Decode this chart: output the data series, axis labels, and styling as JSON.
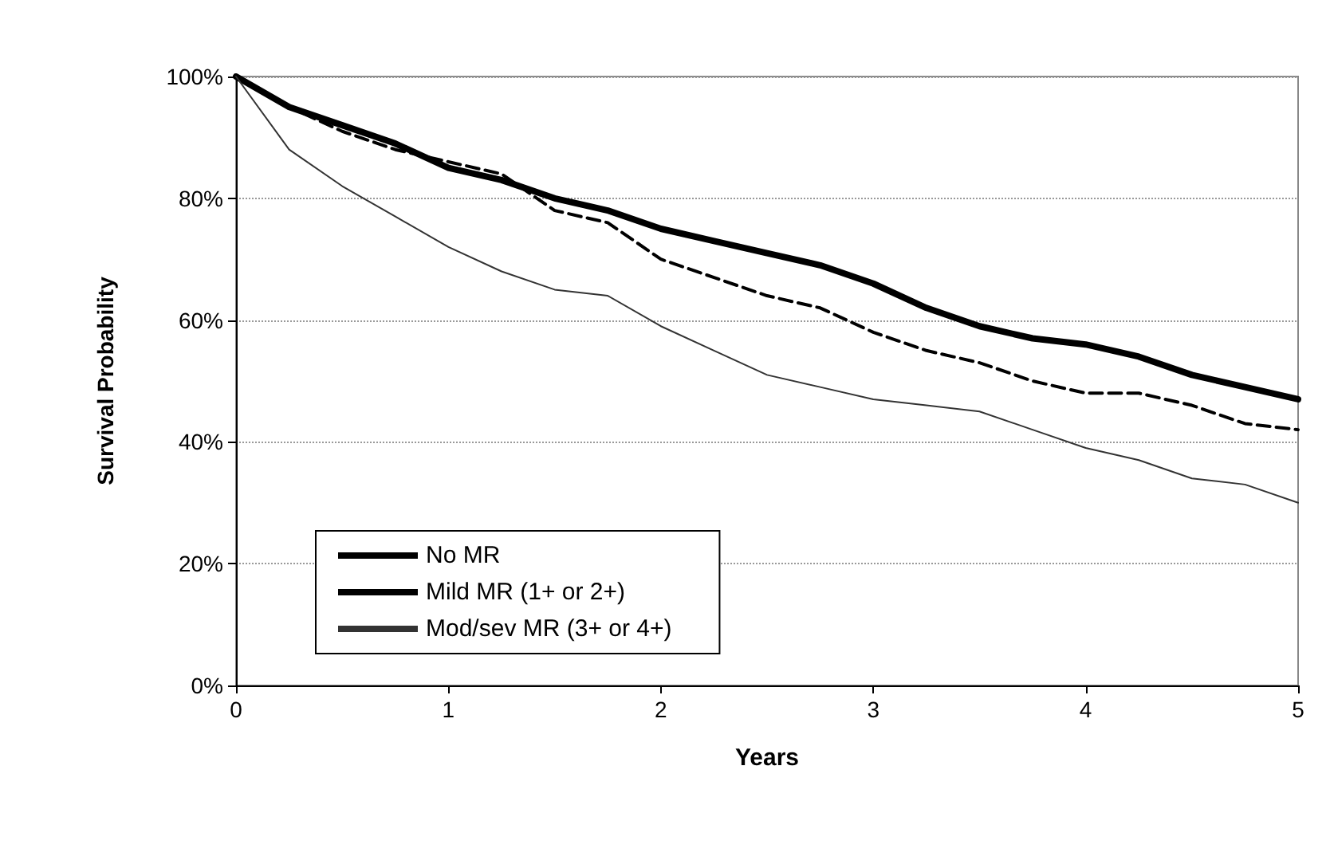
{
  "chart_data": {
    "type": "line",
    "xlabel": "Years",
    "ylabel": "Survival Probability",
    "x": [
      0,
      0.25,
      0.5,
      0.75,
      1,
      1.25,
      1.5,
      1.75,
      2,
      2.25,
      2.5,
      2.75,
      3,
      3.25,
      3.5,
      3.75,
      4,
      4.25,
      4.5,
      4.75,
      5
    ],
    "series": [
      {
        "name": "No MR",
        "color": "#000000",
        "line_style": "solid",
        "values": [
          100,
          95,
          92,
          89,
          85,
          83,
          80,
          78,
          75,
          73,
          71,
          69,
          66,
          62,
          59,
          57,
          56,
          54,
          51,
          49,
          47
        ]
      },
      {
        "name": "Mild MR (1+ or 2+)",
        "color": "#000000",
        "line_style": "dashed",
        "values": [
          100,
          95,
          91,
          88,
          86,
          84,
          78,
          76,
          70,
          67,
          64,
          62,
          58,
          55,
          53,
          50,
          48,
          48,
          46,
          43,
          42
        ]
      },
      {
        "name": "Mod/sev MR (3+ or 4+)",
        "color": "#333333",
        "line_style": "solid",
        "values": [
          100,
          88,
          82,
          77,
          72,
          68,
          65,
          64,
          59,
          55,
          51,
          49,
          47,
          46,
          45,
          42,
          39,
          37,
          34,
          33,
          30
        ]
      }
    ],
    "xlim": [
      0,
      5
    ],
    "xticks": [
      0,
      1,
      2,
      3,
      4,
      5
    ],
    "ylim": [
      0,
      100
    ],
    "yticks": [
      {
        "value": 0,
        "label": "0%"
      },
      {
        "value": 20,
        "label": "20%"
      },
      {
        "value": 40,
        "label": "40%"
      },
      {
        "value": 60,
        "label": "60%"
      },
      {
        "value": 80,
        "label": "80%"
      },
      {
        "value": 100,
        "label": "100%"
      }
    ],
    "grid": "y",
    "legend": "bottom left",
    "marker": "none"
  }
}
